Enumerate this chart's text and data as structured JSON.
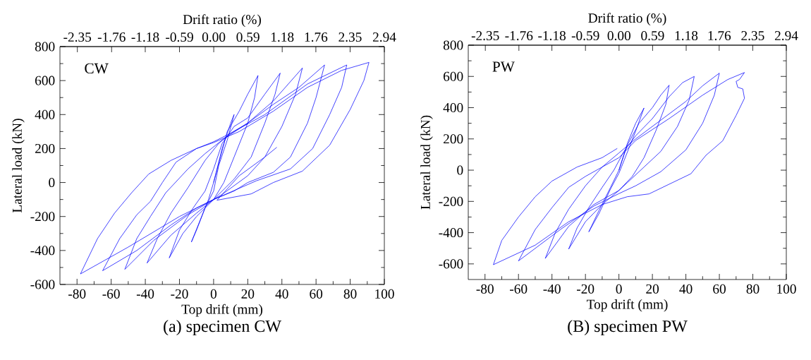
{
  "chart_data": [
    {
      "type": "line",
      "title": "(a) specimen CW",
      "xlabel": "Top drift (mm)",
      "ylabel": "Lateral load (kN)",
      "x2label": "Drift ratio (%)",
      "annotations": [
        "CW"
      ],
      "xlim": [
        -90,
        100
      ],
      "xticks": [
        -80,
        -60,
        -40,
        -20,
        0,
        20,
        40,
        60,
        80,
        100
      ],
      "ylim": [
        -600,
        800
      ],
      "yticks": [
        -600,
        -400,
        -200,
        0,
        200,
        400,
        600,
        800
      ],
      "x2lim": [
        -2.65,
        2.94
      ],
      "x2ticks": [
        -2.35,
        -1.76,
        -1.18,
        -0.59,
        {
          "value": 0,
          "label": "0.00"
        },
        0.59,
        1.18,
        1.76,
        2.35,
        2.94
      ],
      "series": [
        {
          "color": "#0000ff",
          "x": [
            0,
            5,
            10,
            12,
            8,
            3,
            0,
            -5,
            -10,
            -13,
            -9,
            -3,
            0,
            4,
            8,
            15,
            20,
            26,
            24,
            20,
            12,
            6,
            0,
            -10,
            -18,
            -26,
            -20,
            -12,
            -5,
            0,
            5,
            12,
            20,
            30,
            39,
            36,
            30,
            22,
            12,
            0,
            -10,
            -25,
            -39,
            -33,
            -25,
            -15,
            -5,
            3,
            10,
            20,
            35,
            52,
            48,
            40,
            30,
            20,
            5,
            0,
            -15,
            -35,
            -52,
            -45,
            -37,
            -28,
            -15,
            -5,
            5,
            20,
            35,
            50,
            65,
            60,
            55,
            45,
            35,
            20,
            12,
            0,
            -10,
            -25,
            -45,
            -65,
            -55,
            -45,
            -37,
            -30,
            -22,
            -10,
            0,
            10,
            30,
            55,
            78,
            75,
            68,
            58,
            45,
            25,
            0,
            -20,
            -50,
            -78,
            -68,
            -58,
            -48,
            -38,
            -25,
            -10,
            0,
            15,
            35,
            55,
            75,
            91,
            88,
            80,
            68,
            52,
            35,
            22,
            2,
            15,
            30,
            37
          ],
          "values": [
            0,
            200,
            350,
            400,
            250,
            100,
            -50,
            -150,
            -280,
            -350,
            -250,
            -100,
            0,
            150,
            300,
            420,
            520,
            630,
            500,
            350,
            150,
            0,
            -100,
            -200,
            -300,
            -444,
            -280,
            -150,
            -50,
            80,
            230,
            330,
            380,
            520,
            644,
            520,
            350,
            150,
            20,
            -100,
            -180,
            -310,
            -474,
            -330,
            -180,
            -30,
            130,
            230,
            290,
            350,
            480,
            674,
            520,
            330,
            150,
            40,
            -70,
            -100,
            -190,
            -340,
            -511,
            -330,
            -200,
            -60,
            80,
            170,
            250,
            350,
            460,
            560,
            692,
            500,
            350,
            150,
            60,
            0,
            -50,
            -100,
            -150,
            -250,
            -400,
            -519,
            -330,
            -190,
            -111,
            0,
            120,
            200,
            240,
            290,
            400,
            580,
            692,
            560,
            400,
            200,
            80,
            10,
            -100,
            -200,
            -380,
            -538,
            -330,
            -180,
            -60,
            50,
            130,
            200,
            235,
            300,
            420,
            560,
            660,
            707,
            600,
            430,
            220,
            67,
            0,
            -67,
            -104,
            40,
            150,
            207
          ]
        }
      ]
    },
    {
      "type": "line",
      "title": "(B) specimen PW",
      "xlabel": "Top drift (mm)",
      "ylabel": "Lateral load (kN)",
      "x2label": "Drift ratio (%)",
      "annotations": [
        "PW"
      ],
      "xlim": [
        -90,
        100
      ],
      "xticks": [
        -80,
        -60,
        -40,
        -20,
        0,
        20,
        40,
        60,
        80,
        100
      ],
      "ylim": [
        -700,
        800
      ],
      "yticks": [
        -600,
        -400,
        -200,
        0,
        200,
        400,
        600,
        800
      ],
      "x2lim": [
        -2.65,
        2.94
      ],
      "x2ticks": [
        -2.35,
        -1.76,
        -1.18,
        -0.59,
        {
          "value": 0,
          "label": "0.00"
        },
        0.59,
        1.18,
        1.76,
        2.35,
        2.94
      ],
      "series": [
        {
          "color": "#0000ff",
          "x": [
            0,
            5,
            10,
            15,
            10,
            3,
            0,
            -5,
            -12,
            -18,
            -12,
            -5,
            0,
            5,
            12,
            20,
            25,
            30,
            28,
            22,
            15,
            8,
            0,
            -10,
            -20,
            -30,
            -25,
            -18,
            -10,
            -3,
            3,
            10,
            20,
            30,
            38,
            45,
            42,
            35,
            25,
            15,
            5,
            0,
            -15,
            -30,
            -44,
            -38,
            -30,
            -20,
            -10,
            0,
            10,
            25,
            40,
            50,
            60,
            57,
            50,
            40,
            25,
            10,
            0,
            -15,
            -35,
            -60,
            -50,
            -40,
            -30,
            -20,
            -10,
            0,
            10,
            30,
            50,
            65,
            75,
            72,
            70,
            71,
            74,
            75,
            70,
            62,
            52,
            43,
            30,
            18,
            5,
            -10,
            -30,
            -50,
            -75,
            -70,
            -60,
            -50,
            -40,
            -25,
            -10,
            -1
          ],
          "values": [
            0,
            170,
            300,
            398,
            250,
            60,
            -20,
            -120,
            -280,
            -395,
            -260,
            -110,
            0,
            160,
            300,
            400,
            480,
            544,
            420,
            250,
            80,
            -40,
            -130,
            -220,
            -330,
            -505,
            -370,
            -240,
            -110,
            0,
            120,
            220,
            330,
            470,
            560,
            600,
            450,
            280,
            120,
            20,
            -80,
            -130,
            -220,
            -360,
            -565,
            -400,
            -250,
            -100,
            20,
            110,
            200,
            320,
            440,
            540,
            621,
            480,
            300,
            130,
            -10,
            -100,
            -150,
            -230,
            -380,
            -581,
            -380,
            -240,
            -110,
            -40,
            20,
            80,
            190,
            330,
            480,
            580,
            625,
            580,
            568,
            530,
            520,
            460,
            350,
            188,
            95,
            -23,
            -90,
            -152,
            -170,
            -220,
            -330,
            -480,
            -605,
            -450,
            -300,
            -170,
            -70,
            20,
            80,
            139
          ]
        }
      ]
    }
  ]
}
